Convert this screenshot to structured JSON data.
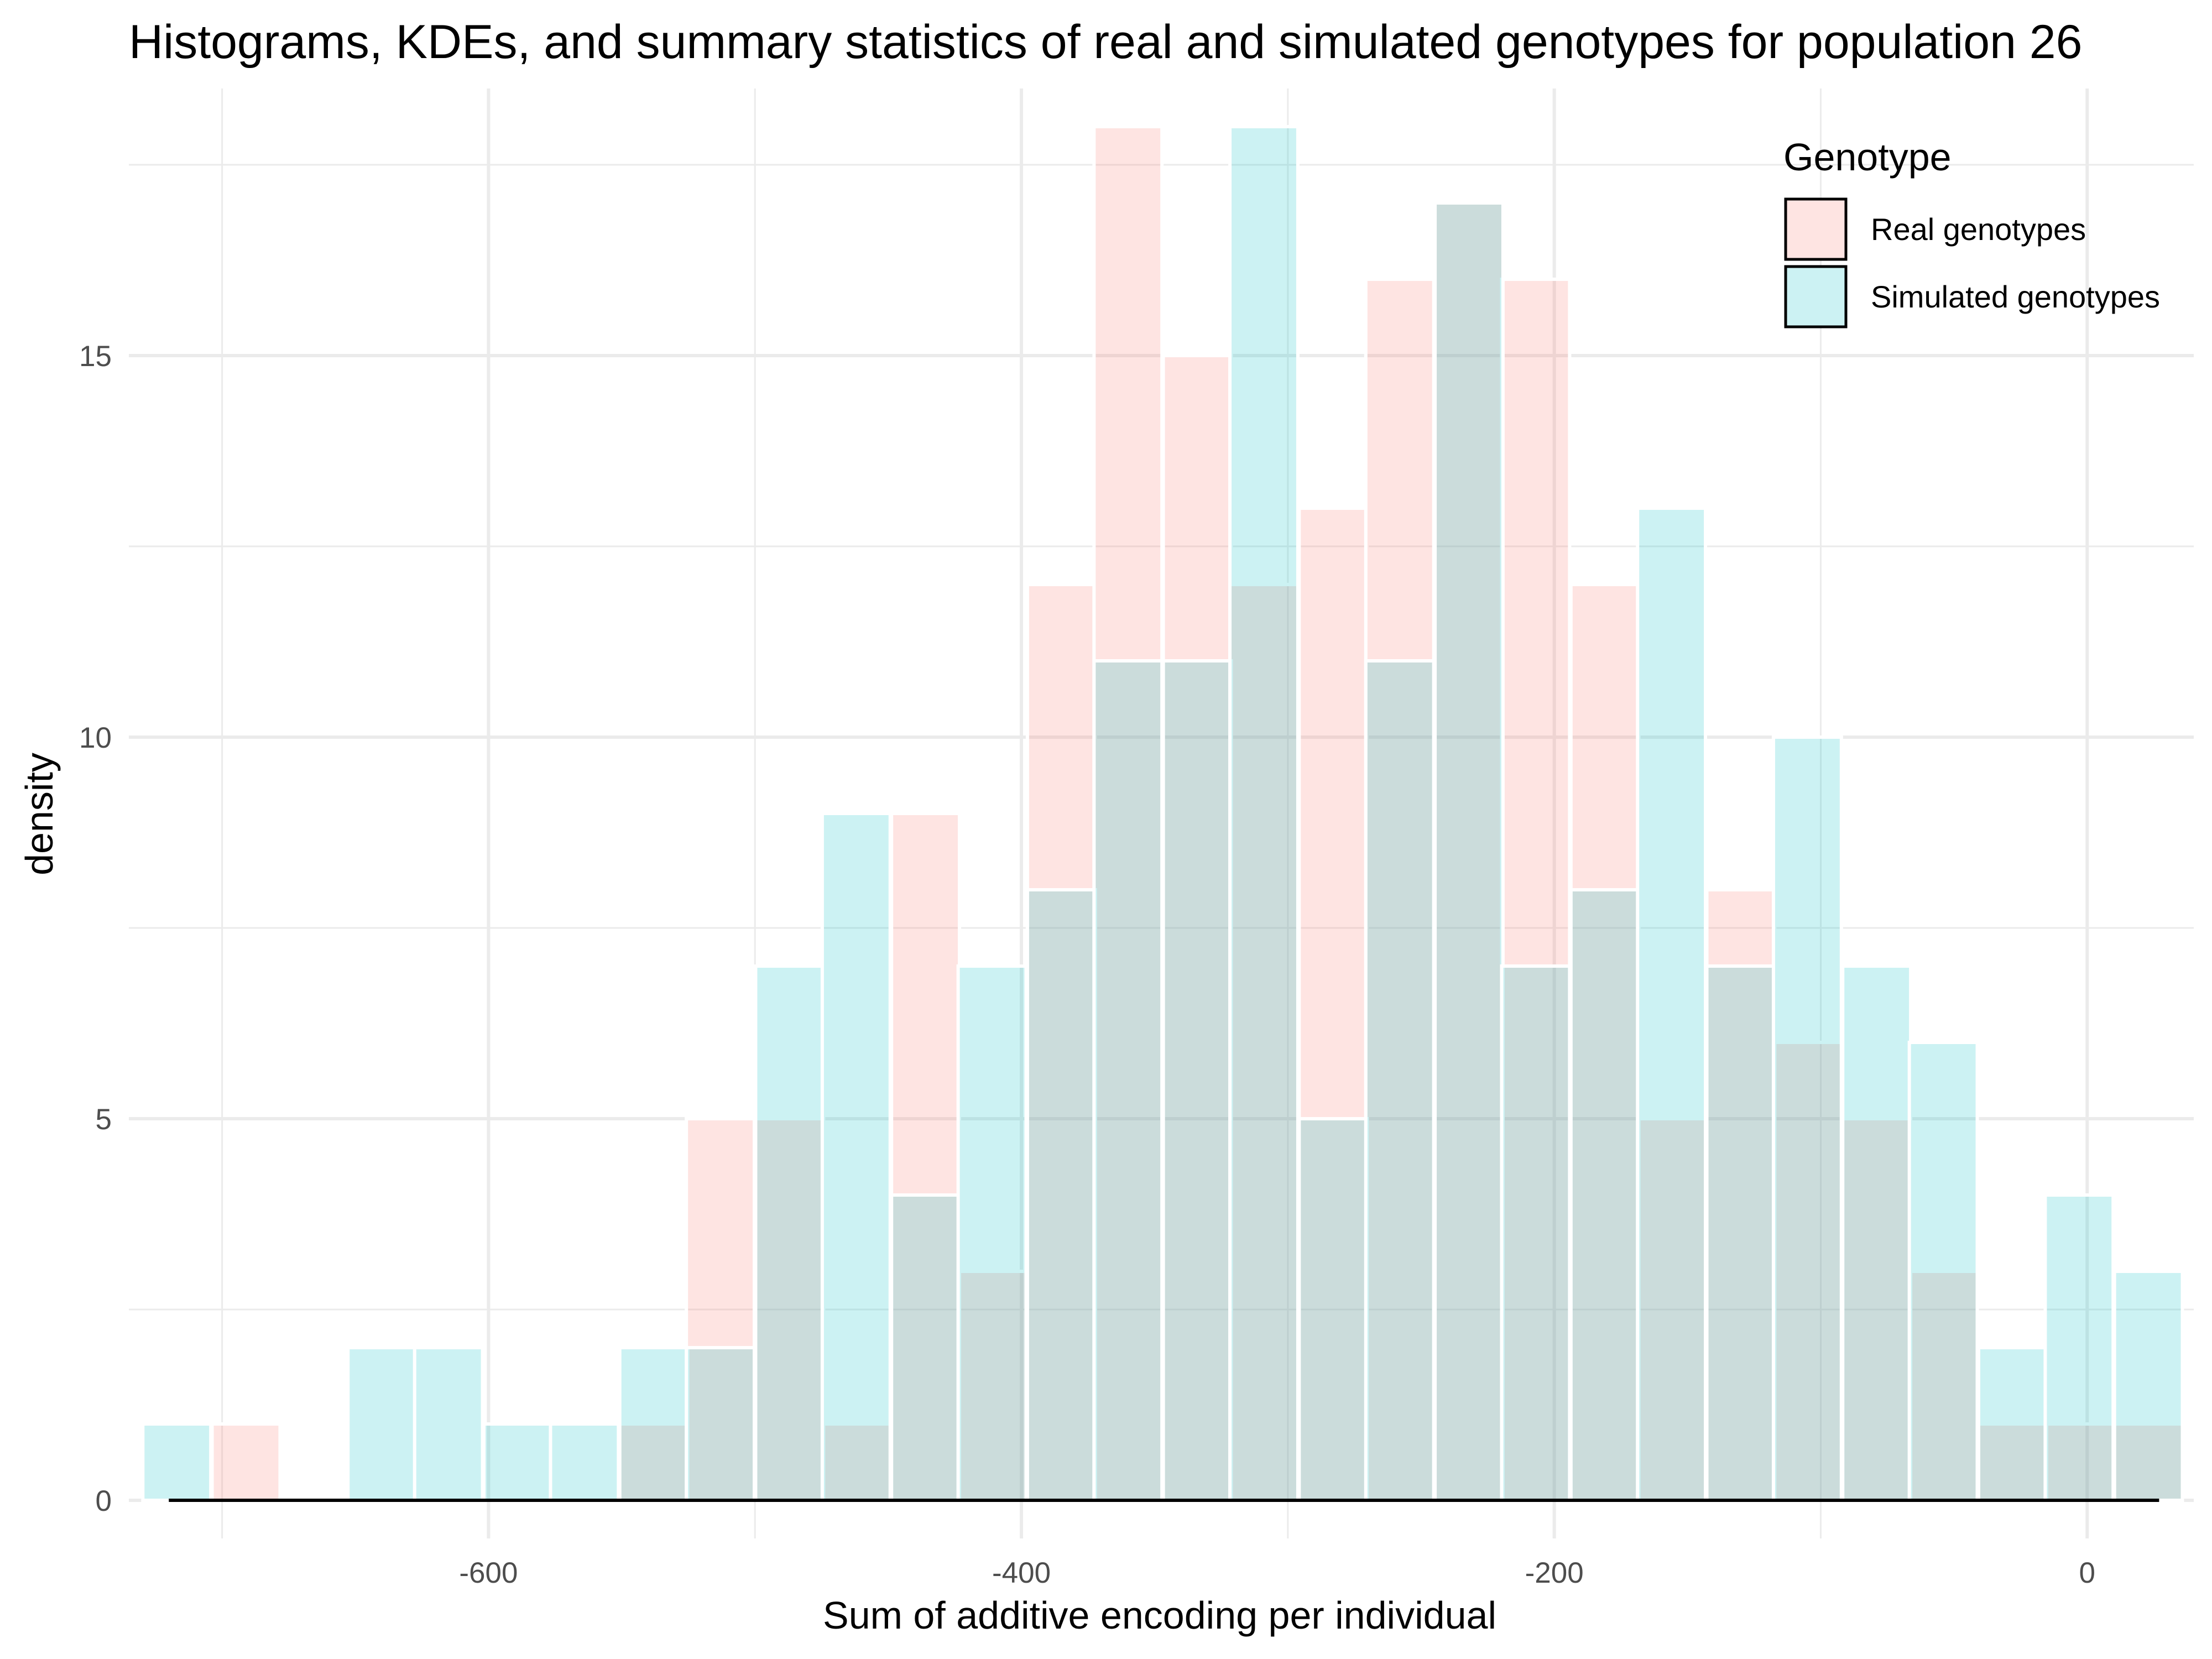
{
  "chart_data": {
    "type": "bar",
    "title": "Histograms, KDEs, and summary statistics of real and simulated genotypes for population 26",
    "xlabel": "Sum of additive encoding per individual",
    "ylabel": "density",
    "xlim": [
      -735,
      40
    ],
    "ylim": [
      -0.5,
      18.5
    ],
    "x_ticks": [
      -600,
      -400,
      -200,
      0
    ],
    "y_ticks": [
      0,
      5,
      10,
      15
    ],
    "grid": true,
    "legend_position": "top-right",
    "legend_title": "Genotype",
    "bin_width": 25.5,
    "bin_centers": [
      -717,
      -691,
      -640,
      -615,
      -589,
      -564,
      -538,
      -513,
      -487,
      -462,
      -436,
      -411,
      -385,
      -360,
      -334,
      -309,
      -283,
      -258,
      -232,
      -207,
      -181,
      -156,
      -130,
      -105,
      -79,
      -54,
      -28,
      -3,
      23
    ],
    "series": [
      {
        "name": "Real genotypes",
        "color": "#f8766d",
        "values": [
          0,
          1,
          0,
          0,
          0,
          0,
          1,
          5,
          5,
          1,
          9,
          3,
          12,
          18,
          15,
          12,
          13,
          16,
          17,
          16,
          12,
          5,
          8,
          6,
          5,
          3,
          1,
          1,
          1
        ]
      },
      {
        "name": "Simulated genotypes",
        "color": "#00bfc4",
        "values": [
          1,
          0,
          2,
          2,
          1,
          1,
          2,
          2,
          7,
          9,
          4,
          7,
          8,
          11,
          11,
          18,
          5,
          11,
          17,
          7,
          8,
          13,
          7,
          10,
          7,
          6,
          2,
          4,
          3
        ]
      }
    ],
    "baseline": {
      "x": [
        -720,
        27
      ],
      "y": 0,
      "color": "#000000"
    }
  }
}
